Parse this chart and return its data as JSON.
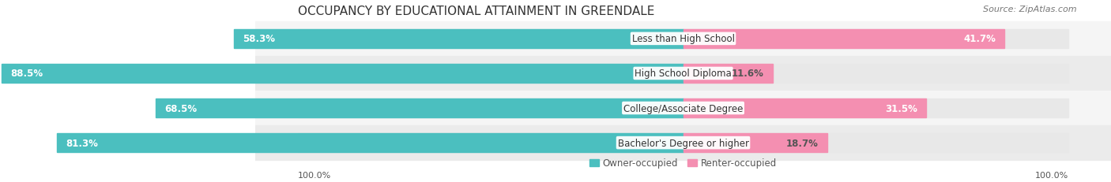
{
  "title": "OCCUPANCY BY EDUCATIONAL ATTAINMENT IN GREENDALE",
  "source": "Source: ZipAtlas.com",
  "categories": [
    "Less than High School",
    "High School Diploma",
    "College/Associate Degree",
    "Bachelor's Degree or higher"
  ],
  "owner_values": [
    58.3,
    88.5,
    68.5,
    81.3
  ],
  "renter_values": [
    41.7,
    11.6,
    31.5,
    18.7
  ],
  "owner_color": "#4BBFBF",
  "renter_color": "#F48FB1",
  "bar_bg_color": "#E8E8E8",
  "row_bg_colors": [
    "#F5F5F5",
    "#EBEBEB",
    "#F5F5F5",
    "#EBEBEB"
  ],
  "legend_owner": "Owner-occupied",
  "legend_renter": "Renter-occupied",
  "title_fontsize": 11,
  "label_fontsize": 8.5,
  "axis_label_fontsize": 8,
  "source_fontsize": 8,
  "total_pct": 100.0,
  "background_color": "#FFFFFF"
}
